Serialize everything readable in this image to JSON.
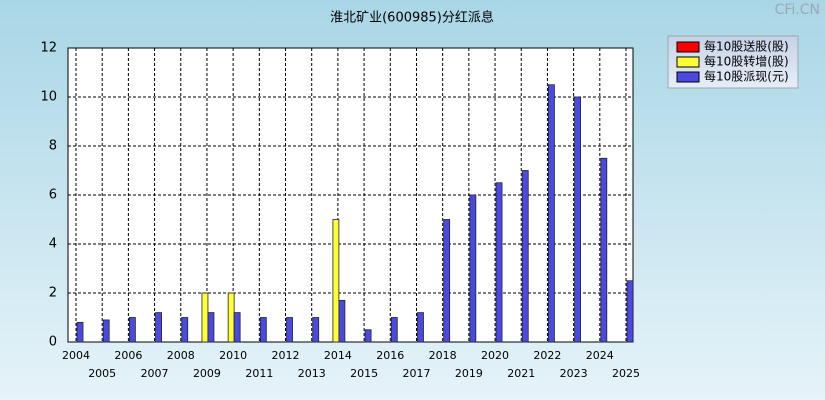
{
  "chart_data": {
    "type": "bar",
    "title": "淮北矿业(600985)分红派息",
    "watermark": "CFi.CN",
    "categories": [
      "2004",
      "2005",
      "2006",
      "2007",
      "2008",
      "2009",
      "2010",
      "2011",
      "2012",
      "2013",
      "2014",
      "2015",
      "2016",
      "2017",
      "2018",
      "2019",
      "2020",
      "2021",
      "2022",
      "2023",
      "2024",
      "2025"
    ],
    "series": [
      {
        "name": "每10股送股(股)",
        "color": "#ff0000",
        "values": [
          null,
          null,
          null,
          null,
          null,
          null,
          null,
          null,
          null,
          null,
          null,
          null,
          null,
          null,
          null,
          null,
          null,
          null,
          null,
          null,
          null,
          null
        ]
      },
      {
        "name": "每10股转增(股)",
        "color": "#ffff33",
        "values": [
          null,
          null,
          null,
          null,
          null,
          2,
          2,
          null,
          null,
          null,
          5,
          null,
          null,
          null,
          null,
          null,
          null,
          null,
          null,
          null,
          null,
          null
        ]
      },
      {
        "name": "每10股派现(元)",
        "color": "#4a4ae0",
        "values": [
          0.8,
          0.9,
          1.0,
          1.2,
          1.0,
          1.2,
          1.2,
          1.0,
          1.0,
          1.0,
          1.7,
          0.5,
          1.0,
          1.2,
          5.0,
          6.0,
          6.5,
          7.0,
          10.5,
          10.0,
          7.5,
          2.5
        ]
      }
    ],
    "ylim": [
      0,
      12
    ],
    "yticks": [
      0,
      2,
      4,
      6,
      8,
      10,
      12
    ],
    "grid": true
  }
}
